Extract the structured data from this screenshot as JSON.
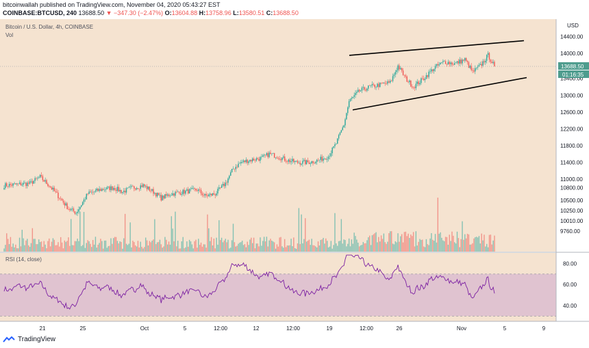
{
  "header": {
    "line1": "bitcoinwallah published on TradingView.com, November 04, 2020 05:43:27 EST",
    "symbol": "COINBASE:BTCUSD, 240",
    "last": "13688.50",
    "change": "▼ −347.30 (−2.47%)",
    "o_label": "O:",
    "o_val": "13604.88",
    "h_label": "H:",
    "h_val": "13758.96",
    "l_label": "L:",
    "l_val": "13580.51",
    "c_label": "C:",
    "c_val": "13688.50"
  },
  "pane_title": "Bitcoin / U.S. Dollar, 4h, COINBASE",
  "vol_label": "Vol",
  "rsi_label": "RSI (14, close)",
  "currency": "USD",
  "price_tag": "13688.50",
  "timer_tag": "01:16:35",
  "footer_brand": "TradingView",
  "colors": {
    "up": "#26a69a",
    "down": "#ef5350",
    "bg": "#f5e3d0",
    "rsi_line": "#7b1fa2",
    "rsi_band": "#e0c3d0",
    "tag": "#4e9c8e",
    "channel": "#000000"
  },
  "chart_data": {
    "type": "candlestick",
    "price_axis_ticks": [
      14400,
      14000,
      13400,
      13000,
      12600,
      12200,
      11800,
      11400,
      11000,
      10800,
      10500,
      10250,
      10010,
      9760
    ],
    "rsi_axis_ticks": [
      80,
      60,
      40
    ],
    "x_ticks": [
      "21",
      "25",
      "Oct",
      "5",
      "12:00",
      "12",
      "12:00",
      "19",
      "12:00",
      "26",
      "Nov",
      "5",
      "9"
    ],
    "price_range": [
      9600,
      14650
    ],
    "rsi_range": [
      25,
      90
    ],
    "rsi_bands": [
      30,
      70
    ],
    "last_price": 13688.5,
    "open": 13604.88,
    "high": 13758.96,
    "low": 13580.51,
    "close": 13688.5,
    "change": -347.3,
    "change_pct": -2.47,
    "anchors": [
      [
        0,
        10850
      ],
      [
        20,
        10900
      ],
      [
        28,
        11050
      ],
      [
        35,
        10850
      ],
      [
        42,
        10600
      ],
      [
        50,
        10300
      ],
      [
        56,
        10200
      ],
      [
        65,
        10650
      ],
      [
        75,
        10750
      ],
      [
        85,
        10800
      ],
      [
        92,
        10700
      ],
      [
        100,
        10800
      ],
      [
        108,
        10850
      ],
      [
        116,
        10700
      ],
      [
        122,
        10550
      ],
      [
        130,
        10650
      ],
      [
        140,
        10700
      ],
      [
        150,
        10750
      ],
      [
        156,
        10600
      ],
      [
        164,
        10650
      ],
      [
        172,
        10900
      ],
      [
        178,
        11250
      ],
      [
        184,
        11400
      ],
      [
        190,
        11450
      ],
      [
        200,
        11500
      ],
      [
        206,
        11600
      ],
      [
        212,
        11550
      ],
      [
        220,
        11450
      ],
      [
        228,
        11400
      ],
      [
        236,
        11400
      ],
      [
        244,
        11450
      ],
      [
        252,
        11550
      ],
      [
        258,
        11850
      ],
      [
        264,
        12300
      ],
      [
        268,
        12850
      ],
      [
        276,
        13100
      ],
      [
        284,
        13200
      ],
      [
        292,
        13250
      ],
      [
        300,
        13300
      ],
      [
        306,
        13700
      ],
      [
        312,
        13400
      ],
      [
        318,
        13200
      ],
      [
        326,
        13400
      ],
      [
        334,
        13650
      ],
      [
        342,
        13800
      ],
      [
        350,
        13750
      ],
      [
        358,
        13850
      ],
      [
        364,
        13550
      ],
      [
        370,
        13700
      ],
      [
        376,
        13950
      ],
      [
        381,
        13690
      ]
    ],
    "channel_upper": [
      [
        13950,
        14200
      ],
      [
        13950,
        14300
      ]
    ],
    "channel_lower": [
      [
        12650,
        13100
      ],
      [
        12650,
        13420
      ]
    ]
  }
}
